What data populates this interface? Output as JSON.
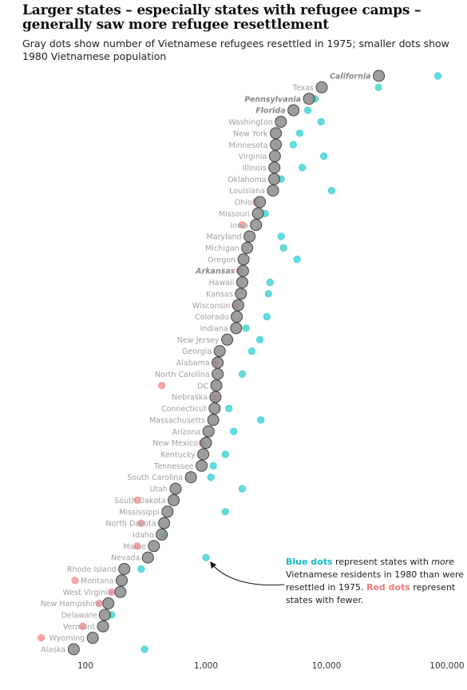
{
  "title": "Larger states – especially states with refugee camps – generally saw more refugee resettlement",
  "subtitle": "Gray dots show number of Vietnamese refugees resettled in 1975; smaller dots show 1980 Vietnamese population",
  "annotation": {
    "blue_label": "Blue dots",
    "part1": " represent  states with ",
    "more": "more",
    "part2": " Vietnamese residents  in 1980  than were resettled  in 1975.  ",
    "red_label": "Red dots",
    "part3": " represent states with fewer."
  },
  "colors": {
    "gray": "#8c8c8c",
    "blue": "#56dcde",
    "red": "#f6a3a1",
    "label": "#a0a0a0",
    "label_bold": "#888888"
  },
  "chart_data": {
    "type": "scatter",
    "x_scale": "log",
    "xlim": [
      70,
      100000
    ],
    "xticks": [
      {
        "value": 100,
        "label": "100"
      },
      {
        "value": 1000,
        "label": "1,000"
      },
      {
        "value": 10000,
        "label": "10,000"
      },
      {
        "value": 100000,
        "label": "100,000"
      }
    ],
    "states": [
      {
        "name": "California",
        "camp": true,
        "refugees_1975": 27199,
        "pop_1980": 84000
      },
      {
        "name": "Texas",
        "camp": false,
        "refugees_1975": 9130,
        "pop_1980": 27000
      },
      {
        "name": "Pennsylvania",
        "camp": true,
        "refugees_1975": 7159,
        "pop_1980": 8000
      },
      {
        "name": "Florida",
        "camp": true,
        "refugees_1975": 5322,
        "pop_1980": 7000
      },
      {
        "name": "Washington",
        "camp": false,
        "refugees_1975": 4182,
        "pop_1980": 9000
      },
      {
        "name": "New York",
        "camp": false,
        "refugees_1975": 3800,
        "pop_1980": 6000
      },
      {
        "name": "Minnesota",
        "camp": false,
        "refugees_1975": 3800,
        "pop_1980": 5300
      },
      {
        "name": "Virginia",
        "camp": false,
        "refugees_1975": 3733,
        "pop_1980": 9500
      },
      {
        "name": "Illinois",
        "camp": false,
        "refugees_1975": 3696,
        "pop_1980": 6300
      },
      {
        "name": "Oklahoma",
        "camp": false,
        "refugees_1975": 3680,
        "pop_1980": 4200
      },
      {
        "name": "Louisiana",
        "camp": false,
        "refugees_1975": 3600,
        "pop_1980": 11000
      },
      {
        "name": "Ohio",
        "camp": false,
        "refugees_1975": 2800,
        "pop_1980": 2600
      },
      {
        "name": "Missouri",
        "camp": false,
        "refugees_1975": 2700,
        "pop_1980": 3100
      },
      {
        "name": "Iowa",
        "camp": false,
        "refugees_1975": 2600,
        "pop_1980": 2000
      },
      {
        "name": "Maryland",
        "camp": false,
        "refugees_1975": 2300,
        "pop_1980": 4200
      },
      {
        "name": "Michigan",
        "camp": false,
        "refugees_1975": 2200,
        "pop_1980": 4400
      },
      {
        "name": "Oregon",
        "camp": false,
        "refugees_1975": 2050,
        "pop_1980": 5700
      },
      {
        "name": "Arkansas",
        "camp": true,
        "refugees_1975": 2030,
        "pop_1980": 1900
      },
      {
        "name": "Hawaii",
        "camp": false,
        "refugees_1975": 2000,
        "pop_1980": 3400
      },
      {
        "name": "Kansas",
        "camp": false,
        "refugees_1975": 1950,
        "pop_1980": 3300
      },
      {
        "name": "Wisconsin",
        "camp": false,
        "refugees_1975": 1850,
        "pop_1980": 1750
      },
      {
        "name": "Colorado",
        "camp": false,
        "refugees_1975": 1800,
        "pop_1980": 3200
      },
      {
        "name": "Indiana",
        "camp": false,
        "refugees_1975": 1780,
        "pop_1980": 2150
      },
      {
        "name": "New Jersey",
        "camp": false,
        "refugees_1975": 1500,
        "pop_1980": 2800
      },
      {
        "name": "Georgia",
        "camp": false,
        "refugees_1975": 1300,
        "pop_1980": 2400
      },
      {
        "name": "Alabama",
        "camp": false,
        "refugees_1975": 1250,
        "pop_1980": 1200
      },
      {
        "name": "North Carolina",
        "camp": false,
        "refugees_1975": 1250,
        "pop_1980": 2000
      },
      {
        "name": "DC",
        "camp": false,
        "refugees_1975": 1220,
        "pop_1980": 430
      },
      {
        "name": "Nebraska",
        "camp": false,
        "refugees_1975": 1200,
        "pop_1980": 1200
      },
      {
        "name": "Connecticut",
        "camp": false,
        "refugees_1975": 1180,
        "pop_1980": 1550
      },
      {
        "name": "Massachusetts",
        "camp": false,
        "refugees_1975": 1150,
        "pop_1980": 2850
      },
      {
        "name": "Arizona",
        "camp": false,
        "refugees_1975": 1050,
        "pop_1980": 1700
      },
      {
        "name": "New Mexico",
        "camp": false,
        "refugees_1975": 1000,
        "pop_1980": 930
      },
      {
        "name": "Kentucky",
        "camp": false,
        "refugees_1975": 950,
        "pop_1980": 1450
      },
      {
        "name": "Tennessee",
        "camp": false,
        "refugees_1975": 920,
        "pop_1980": 1150
      },
      {
        "name": "South Carolina",
        "camp": false,
        "refugees_1975": 750,
        "pop_1980": 1100
      },
      {
        "name": "Utah",
        "camp": false,
        "refugees_1975": 560,
        "pop_1980": 2000
      },
      {
        "name": "South Dakota",
        "camp": false,
        "refugees_1975": 540,
        "pop_1980": 270
      },
      {
        "name": "Mississippi",
        "camp": false,
        "refugees_1975": 480,
        "pop_1980": 1450
      },
      {
        "name": "North Dakota",
        "camp": false,
        "refugees_1975": 450,
        "pop_1980": 290
      },
      {
        "name": "Idaho",
        "camp": false,
        "refugees_1975": 430,
        "pop_1980": 450
      },
      {
        "name": "Maine",
        "camp": false,
        "refugees_1975": 370,
        "pop_1980": 270
      },
      {
        "name": "Nevada",
        "camp": false,
        "refugees_1975": 330,
        "pop_1980": 1000
      },
      {
        "name": "Rhode Island",
        "camp": false,
        "refugees_1975": 210,
        "pop_1980": 290
      },
      {
        "name": "Montana",
        "camp": false,
        "refugees_1975": 200,
        "pop_1980": 82
      },
      {
        "name": "West Virginia",
        "camp": false,
        "refugees_1975": 195,
        "pop_1980": 165
      },
      {
        "name": "New Hampshire",
        "camp": false,
        "refugees_1975": 155,
        "pop_1980": 130
      },
      {
        "name": "Delaware",
        "camp": false,
        "refugees_1975": 145,
        "pop_1980": 165
      },
      {
        "name": "Vermont",
        "camp": false,
        "refugees_1975": 140,
        "pop_1980": 95
      },
      {
        "name": "Wyoming",
        "camp": false,
        "refugees_1975": 115,
        "pop_1980": 43
      },
      {
        "name": "Alaska",
        "camp": false,
        "refugees_1975": 80,
        "pop_1980": 310
      }
    ]
  }
}
